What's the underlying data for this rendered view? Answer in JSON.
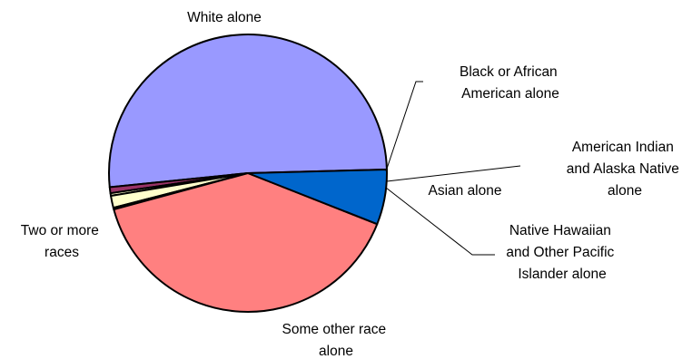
{
  "chart_data": {
    "type": "pie",
    "title": "",
    "categories": [
      "White alone",
      "Black or African American alone",
      "American Indian and Alaska Native alone",
      "Asian alone",
      "Native Hawaiian and Other Pacific Islander alone",
      "Some other race alone",
      "Two or more races"
    ],
    "values": [
      51.2,
      0.7,
      0.3,
      1.4,
      0.2,
      39.8,
      6.4
    ],
    "colors": [
      "#9999FF",
      "#993366",
      "#FFFFCC",
      "#FFFFCC",
      "#CCFFFF",
      "#FF8080",
      "#0066CC"
    ],
    "labels": [
      [
        "White alone"
      ],
      [
        "Black or African",
        "American alone"
      ],
      [
        "American Indian",
        "and Alaska Native",
        "alone"
      ],
      [
        "Asian alone"
      ],
      [
        "Native Hawaiian",
        "and Other Pacific",
        "Islander alone"
      ],
      [
        "Some other race",
        "alone"
      ],
      [
        "Two or more",
        "races"
      ]
    ],
    "legend": "none"
  }
}
